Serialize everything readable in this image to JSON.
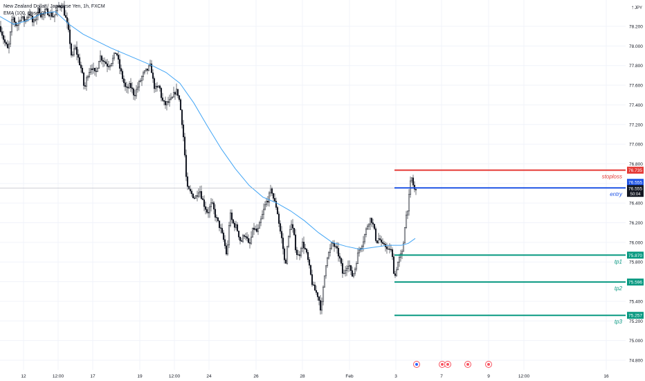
{
  "legend": {
    "symbol_title": "New Zealand Dollar / Japanese Yen, 1h, FXCM",
    "indicator": "EMA (100, close, 0)"
  },
  "corner_label": "JPY",
  "colors": {
    "candle": "#131722",
    "ema": "#42a5f5",
    "stoploss": "#e53935",
    "entry": "#1e53e5",
    "target": "#089981",
    "grid": "#f0f3fa",
    "axis_text": "#131722",
    "price_line": "#b2b5be",
    "last_price_bg": "#131722"
  },
  "chart_data": {
    "type": "candlestick",
    "title": "New Zealand Dollar / Japanese Yen, 1h, FXCM",
    "ylim": [
      74.75,
      78.45
    ],
    "y_ticks": [
      "78.200",
      "78.000",
      "77.800",
      "77.600",
      "77.400",
      "77.200",
      "77.000",
      "76.800",
      "76.600",
      "76.400",
      "76.200",
      "76.000",
      "75.800",
      "75.600",
      "75.400",
      "75.200",
      "75.000",
      "74.800"
    ],
    "x_ticks": [
      "12",
      "12:00",
      "17",
      "19",
      "12:00",
      "24",
      "26",
      "28",
      "Feb",
      "3",
      "7",
      "9",
      "12:00",
      "16"
    ],
    "close_path": [
      [
        0,
        78.2
      ],
      [
        6,
        78.05
      ],
      [
        12,
        77.95
      ],
      [
        18,
        78.3
      ],
      [
        24,
        78.2
      ],
      [
        30,
        78.3
      ],
      [
        36,
        78.25
      ],
      [
        42,
        78.35
      ],
      [
        48,
        78.22
      ],
      [
        52,
        78.3
      ],
      [
        56,
        78.38
      ],
      [
        60,
        78.3
      ],
      [
        66,
        78.36
      ],
      [
        72,
        78.33
      ],
      [
        78,
        78.3
      ],
      [
        84,
        78.4
      ],
      [
        90,
        78.42
      ],
      [
        96,
        78.25
      ],
      [
        100,
        78.1
      ],
      [
        104,
        77.85
      ],
      [
        108,
        78.0
      ],
      [
        112,
        77.9
      ],
      [
        118,
        77.75
      ],
      [
        122,
        77.55
      ],
      [
        126,
        77.7
      ],
      [
        132,
        77.8
      ],
      [
        138,
        77.7
      ],
      [
        144,
        77.9
      ],
      [
        150,
        77.85
      ],
      [
        156,
        77.8
      ],
      [
        162,
        77.85
      ],
      [
        168,
        77.95
      ],
      [
        172,
        77.8
      ],
      [
        176,
        77.7
      ],
      [
        182,
        77.55
      ],
      [
        188,
        77.6
      ],
      [
        194,
        77.5
      ],
      [
        200,
        77.6
      ],
      [
        206,
        77.7
      ],
      [
        212,
        77.75
      ],
      [
        218,
        77.8
      ],
      [
        222,
        77.6
      ],
      [
        226,
        77.55
      ],
      [
        230,
        77.6
      ],
      [
        234,
        77.45
      ],
      [
        238,
        77.4
      ],
      [
        242,
        77.42
      ],
      [
        248,
        77.45
      ],
      [
        254,
        77.55
      ],
      [
        258,
        77.5
      ],
      [
        262,
        77.3
      ],
      [
        266,
        77.0
      ],
      [
        270,
        76.55
      ],
      [
        276,
        76.5
      ],
      [
        282,
        76.45
      ],
      [
        288,
        76.55
      ],
      [
        294,
        76.4
      ],
      [
        300,
        76.3
      ],
      [
        306,
        76.4
      ],
      [
        312,
        76.25
      ],
      [
        318,
        76.15
      ],
      [
        324,
        76.0
      ],
      [
        328,
        75.85
      ],
      [
        332,
        76.3
      ],
      [
        336,
        76.2
      ],
      [
        342,
        76.15
      ],
      [
        348,
        76.0
      ],
      [
        354,
        76.1
      ],
      [
        360,
        75.95
      ],
      [
        366,
        76.15
      ],
      [
        372,
        76.1
      ],
      [
        378,
        76.25
      ],
      [
        384,
        76.4
      ],
      [
        388,
        76.45
      ],
      [
        392,
        76.55
      ],
      [
        396,
        76.42
      ],
      [
        400,
        76.35
      ],
      [
        404,
        76.15
      ],
      [
        408,
        76.0
      ],
      [
        412,
        75.75
      ],
      [
        416,
        76.0
      ],
      [
        420,
        76.2
      ],
      [
        424,
        76.1
      ],
      [
        428,
        75.9
      ],
      [
        432,
        75.85
      ],
      [
        436,
        76.0
      ],
      [
        440,
        75.95
      ],
      [
        444,
        75.85
      ],
      [
        448,
        75.7
      ],
      [
        452,
        75.55
      ],
      [
        456,
        75.5
      ],
      [
        460,
        75.45
      ],
      [
        464,
        75.3
      ],
      [
        468,
        75.6
      ],
      [
        472,
        75.85
      ],
      [
        476,
        75.9
      ],
      [
        480,
        76.0
      ],
      [
        484,
        75.95
      ],
      [
        488,
        75.9
      ],
      [
        492,
        75.8
      ],
      [
        496,
        75.65
      ],
      [
        500,
        75.75
      ],
      [
        504,
        75.8
      ],
      [
        508,
        75.65
      ],
      [
        512,
        75.7
      ],
      [
        516,
        75.85
      ],
      [
        520,
        75.95
      ],
      [
        524,
        76.0
      ],
      [
        528,
        76.1
      ],
      [
        532,
        76.2
      ],
      [
        536,
        76.25
      ],
      [
        540,
        76.15
      ],
      [
        544,
        76.0
      ],
      [
        548,
        76.05
      ],
      [
        552,
        75.95
      ],
      [
        556,
        76.0
      ],
      [
        560,
        75.9
      ],
      [
        564,
        75.95
      ],
      [
        568,
        75.8
      ],
      [
        570,
        75.62
      ],
      [
        574,
        75.78
      ],
      [
        578,
        75.85
      ],
      [
        582,
        75.9
      ],
      [
        584,
        76.1
      ],
      [
        586,
        76.25
      ],
      [
        588,
        76.3
      ],
      [
        590,
        76.4
      ],
      [
        592,
        76.52
      ],
      [
        594,
        76.68
      ],
      [
        596,
        76.62
      ],
      [
        598,
        76.55
      ],
      [
        600,
        76.52
      ]
    ],
    "ema_path": [
      [
        0,
        78.3
      ],
      [
        20,
        78.22
      ],
      [
        40,
        78.26
      ],
      [
        60,
        78.33
      ],
      [
        80,
        78.35
      ],
      [
        100,
        78.22
      ],
      [
        120,
        78.12
      ],
      [
        140,
        78.05
      ],
      [
        160,
        77.98
      ],
      [
        180,
        77.92
      ],
      [
        200,
        77.86
      ],
      [
        220,
        77.8
      ],
      [
        240,
        77.73
      ],
      [
        260,
        77.62
      ],
      [
        280,
        77.42
      ],
      [
        300,
        77.18
      ],
      [
        320,
        76.95
      ],
      [
        340,
        76.75
      ],
      [
        360,
        76.58
      ],
      [
        380,
        76.46
      ],
      [
        400,
        76.4
      ],
      [
        420,
        76.32
      ],
      [
        440,
        76.22
      ],
      [
        460,
        76.1
      ],
      [
        480,
        76.0
      ],
      [
        500,
        75.96
      ],
      [
        520,
        75.93
      ],
      [
        540,
        75.95
      ],
      [
        560,
        75.97
      ],
      [
        580,
        75.97
      ],
      [
        590,
        75.99
      ],
      [
        600,
        76.04
      ]
    ],
    "levels": [
      {
        "label": "stoploss",
        "price": 76.735,
        "price_text": "76.735",
        "role": "stoploss"
      },
      {
        "label": "entry",
        "price": 76.555,
        "price_text": "76.555",
        "role": "entry"
      },
      {
        "label": "tp1",
        "price": 75.87,
        "price_text": "75.870",
        "role": "target"
      },
      {
        "label": "tp2",
        "price": 75.596,
        "price_text": "75.596",
        "role": "target"
      },
      {
        "label": "tp3",
        "price": 75.257,
        "price_text": "75.257",
        "role": "target"
      }
    ],
    "last_price": {
      "price": 76.555,
      "price_text": "76.555",
      "countdown": "50:04"
    },
    "grid": true,
    "event_markers": 4
  }
}
